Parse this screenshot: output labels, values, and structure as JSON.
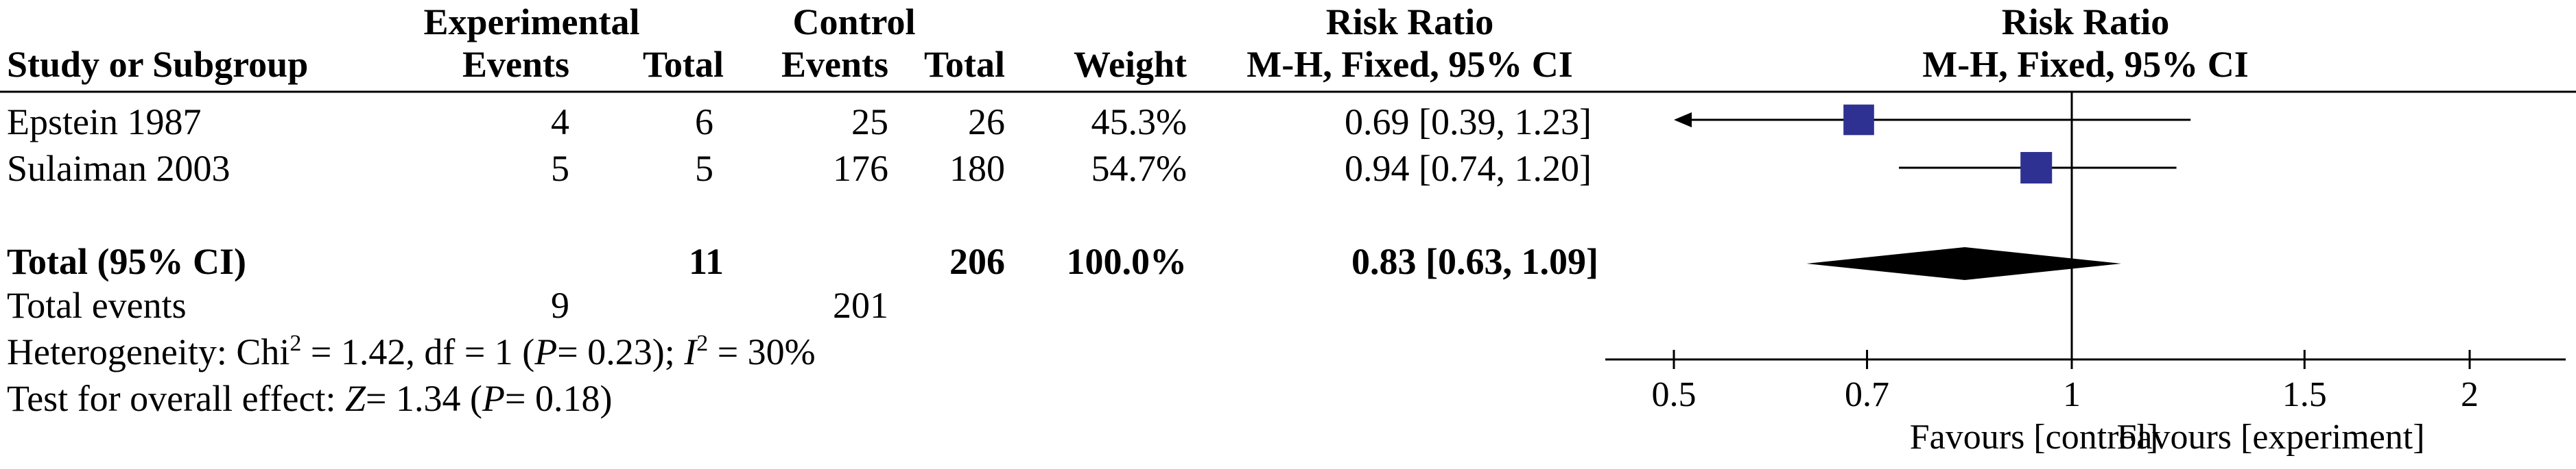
{
  "chart_data": {
    "type": "forest",
    "header": {
      "group1": "Experimental",
      "group2": "Control",
      "rr_title": "Risk Ratio",
      "columns": [
        "Study or Subgroup",
        "Events",
        "Total",
        "Events",
        "Total",
        "Weight",
        "M-H, Fixed, 95% CI"
      ],
      "plot_title": "Risk Ratio",
      "plot_subtitle": "M-H, Fixed, 95% CI"
    },
    "studies": [
      {
        "name": "Epstein 1987",
        "exp_events": "4",
        "exp_total": "6",
        "ctrl_events": "25",
        "ctrl_total": "26",
        "weight": "45.3%",
        "ci_text": "0.69 [0.39, 1.23]",
        "rr": 0.69,
        "lower": 0.39,
        "upper": 1.23
      },
      {
        "name": "Sulaiman 2003",
        "exp_events": "5",
        "exp_total": "5",
        "ctrl_events": "176",
        "ctrl_total": "180",
        "weight": "54.7%",
        "ci_text": "0.94 [0.74, 1.20]",
        "rr": 0.94,
        "lower": 0.74,
        "upper": 1.2
      }
    ],
    "total": {
      "label": "Total (95% CI)",
      "exp_total": "11",
      "ctrl_total": "206",
      "weight": "100.0%",
      "ci_text": "0.83 [0.63, 1.09]",
      "rr": 0.83,
      "lower": 0.63,
      "upper": 1.09
    },
    "total_events": {
      "label": "Total events",
      "exp": "9",
      "ctrl": "201"
    },
    "heterogeneity": {
      "prefix": "Heterogeneity: Chi",
      "sup": "2",
      "mid": " = 1.42, df = 1 (",
      "p_italic": "P",
      "mid2": "= 0.23); ",
      "i_italic": "I",
      "i_sup": "2",
      "end": " = 30%"
    },
    "overall_effect": {
      "prefix": "Test for overall effect: ",
      "z_italic": "Z",
      "mid": "= 1.34 (",
      "p_italic": "P",
      "end": "= 0.18)"
    },
    "axis": {
      "scale": "log",
      "ticks": [
        0.5,
        0.7,
        1,
        1.5,
        2
      ],
      "tick_labels": [
        "0.5",
        "0.7",
        "1",
        "1.5",
        "2"
      ],
      "xlim": [
        0.5,
        2
      ]
    },
    "favours_left": "Favours [control]",
    "favours_right": "Favours [experiment]",
    "colors": {
      "marker": "#2e3192",
      "diamond": "#000000",
      "lines": "#000000"
    }
  }
}
